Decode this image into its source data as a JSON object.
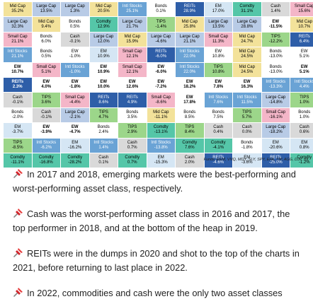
{
  "colors": {
    "Mid Cap": "#f3e29a",
    "Small Cap": "#f4b6c8",
    "Large Cap": "#b8cbe6",
    "Intl Stocks": "#6aa3d5",
    "Bonds": "#ffffff",
    "REITs": "#2e5ea8",
    "EM": "#d5e6f4",
    "Comdty": "#55c6a8",
    "Cash": "#d9d9d9",
    "TIPS": "#9cd68a",
    "EW": "#ffffff"
  },
  "grid": [
    [
      [
        "Mid Cap",
        "35.2%"
      ],
      [
        "Large Cap",
        "13.5%"
      ],
      [
        "Large Cap",
        "1.3%"
      ],
      [
        "Mid Cap",
        "20.5%"
      ],
      [
        "Intl Stocks",
        "25.1%"
      ],
      [
        "Bonds",
        "0.1%"
      ],
      [
        "REITs",
        "28.9%"
      ],
      [
        "EM",
        "17.0%"
      ],
      [
        "Comdty",
        "31.1%"
      ],
      [
        "Cash",
        "1.4%"
      ],
      [
        "Small Cap",
        "15.6%"
      ]
    ],
    [
      [
        "Large Cap",
        "32.3%"
      ],
      [
        "Mid Cap",
        "9.4%"
      ],
      [
        "Bonds",
        "0.5%"
      ],
      [
        "Comdty",
        "12.9%"
      ],
      [
        "Large Cap",
        "21.7%"
      ],
      [
        "TIPS",
        "-1.4%"
      ],
      [
        "Mid Cap",
        "25.8%"
      ],
      [
        "Large Cap",
        "13.5%"
      ],
      [
        "Large Cap",
        "28.8%"
      ],
      [
        "EW",
        "-11.5%"
      ],
      [
        "Mid Cap",
        "10.7%"
      ]
    ],
    [
      [
        "Small Cap",
        "21.1%"
      ],
      [
        "Bonds",
        "6.0%"
      ],
      [
        "Cash",
        "-0.1%"
      ],
      [
        "Large Cap",
        "12.0%"
      ],
      [
        "Mid Cap",
        "15.9%"
      ],
      [
        "Large Cap",
        "-4.6%"
      ],
      [
        "Large Cap",
        "21.1%"
      ],
      [
        "Small Cap",
        "11.3%"
      ],
      [
        "Mid Cap",
        "24.7%"
      ],
      [
        "TIPS",
        "-12.2%"
      ],
      [
        "REITs",
        "6.4%"
      ]
    ],
    [
      [
        "Intl Stocks",
        "21.1%"
      ],
      [
        "Bonds",
        "0.5%"
      ],
      [
        "EW",
        "-1.0%"
      ],
      [
        "EM",
        "10.9%"
      ],
      [
        "Small Cap",
        "12.1%"
      ],
      [
        "REITs",
        "-6.0%"
      ],
      [
        "Intl Stocks",
        "22.0%"
      ],
      [
        "EW",
        "10.8%"
      ],
      [
        "Mid Cap",
        "24.5%"
      ],
      [
        "Bonds",
        "-13.0%"
      ],
      [
        "EW",
        "5.1%"
      ]
    ],
    [
      [
        "EW",
        "10.7%"
      ],
      [
        "Small Cap",
        "5.1%"
      ],
      [
        "Intl Stocks",
        "-1.0%"
      ],
      [
        "EW",
        "10.9%"
      ],
      [
        "Small Cap",
        "12.1%"
      ],
      [
        "EW",
        "-6.0%"
      ],
      [
        "Intl Stocks",
        "22.0%"
      ],
      [
        "TIPS",
        "10.8%"
      ],
      [
        "Mid Cap",
        "24.5%"
      ],
      [
        "Bonds",
        "-13.0%"
      ],
      [
        "EW",
        "5.1%"
      ]
    ],
    [
      [
        "REITs",
        "2.3%"
      ],
      [
        "EW",
        "4.0%"
      ],
      [
        "EW",
        "-1.8%"
      ],
      [
        "EW",
        "10.0%"
      ],
      [
        "EW",
        "12.6%"
      ],
      [
        "EW",
        "-7.2%"
      ],
      [
        "EW",
        "18.2%"
      ],
      [
        "EW",
        "7.8%"
      ],
      [
        "EW",
        "16.3%"
      ],
      [
        "Intl Stocks",
        "-13.3%"
      ],
      [
        "Intl Stocks",
        "4.4%"
      ]
    ],
    [
      [
        "Cash",
        "-0.1%"
      ],
      [
        "TIPS",
        "3.6%"
      ],
      [
        "Small Cap",
        "-4.4%"
      ],
      [
        "REITs",
        "8.6%"
      ],
      [
        "REITs",
        "4.9%"
      ],
      [
        "Small Cap",
        "-8.6%"
      ],
      [
        "EW",
        "17.8%"
      ],
      [
        "Intl Stocks",
        "7.6%"
      ],
      [
        "Intl Stocks",
        "11.5%"
      ],
      [
        "Large Cap",
        "-14.8%"
      ],
      [
        "TIPS",
        "1.0%"
      ]
    ],
    [
      [
        "Bonds",
        "-2.0%"
      ],
      [
        "Cash",
        "-0.1%"
      ],
      [
        "Large Cap",
        "-2.1%"
      ],
      [
        "TIPS",
        "4.7%"
      ],
      [
        "Bonds",
        "3.5%"
      ],
      [
        "Mid Cap",
        "-11.1%"
      ],
      [
        "Bonds",
        "8.5%"
      ],
      [
        "Bonds",
        "7.5%"
      ],
      [
        "TIPS",
        "5.7%"
      ],
      [
        "Small Cap",
        "-16.1%"
      ],
      [
        "Bonds",
        "1.0%"
      ]
    ],
    [
      [
        "EM",
        "-3.7%"
      ],
      [
        "EW",
        "-3.9%"
      ],
      [
        "EW",
        "-4.7%"
      ],
      [
        "Bonds",
        "2.4%"
      ],
      [
        "TIPS",
        "2.9%"
      ],
      [
        "Comdty",
        "-13.1%"
      ],
      [
        "TIPS",
        "8.4%"
      ],
      [
        "Cash",
        "0.4%"
      ],
      [
        "Cash",
        "0.0%"
      ],
      [
        "Large Cap",
        "-18.2%"
      ],
      [
        "Cash",
        "0.6%"
      ]
    ],
    [
      [
        "TIPS",
        "-8.5%"
      ],
      [
        "Intl Stocks",
        "-6.2%"
      ],
      [
        "EM",
        "-16.2%"
      ],
      [
        "Intl Stocks",
        "1.4%"
      ],
      [
        "Cash",
        "0.7%"
      ],
      [
        "Intl Stocks",
        "-13.8%"
      ],
      [
        "Comdty",
        "7.6%"
      ],
      [
        "Comdty",
        "-4.1%"
      ],
      [
        "Bonds",
        "-1.8%"
      ],
      [
        "EM",
        "-20.6%"
      ],
      [
        "EM",
        "0.8%"
      ]
    ],
    [
      [
        "Comdty",
        "-11.1%"
      ],
      [
        "Comdty",
        "-16.8%"
      ],
      [
        "Comdty",
        "-28.2%"
      ],
      [
        "Cash",
        "0.1%"
      ],
      [
        "Comdty",
        "0.7%"
      ],
      [
        "EM",
        "-15.3%"
      ],
      [
        "Cash",
        "2.0%"
      ],
      [
        "REITs",
        "-4.6%"
      ],
      [
        "EM",
        "-3.6%"
      ],
      [
        "REITs",
        "-25.0%"
      ],
      [
        "Comdty",
        "-1.2%"
      ]
    ]
  ],
  "bold_cells": [
    "4,0",
    "4,3",
    "4,5",
    "4,10",
    "5,0",
    "5,1",
    "5,2",
    "5,3",
    "5,4",
    "5,5",
    "5,6",
    "5,7",
    "5,8",
    "8,1",
    "8,2",
    "1,9",
    "6,6"
  ],
  "footnote": "Funds: EEM, VNQ, MDY, SLY, SPY, EFA, TIP, AGG, DJP, BIL",
  "notes": [
    {
      "icon": "pushpin-icon",
      "text": "In 2017 and 2018, emerging markets were the best-performing and worst-performing asset class, respectively."
    },
    {
      "icon": "pushpin-icon",
      "text": "Cash was the worst-performing asset class in 2016 and 2017, the top performer in 2018, and at the bottom of the heap in 2019."
    },
    {
      "icon": "pushpin-icon",
      "text": "REITs were in the dumps in 2020 and shot to the top of the charts in 2021, before returning to last place in 2022."
    },
    {
      "icon": "pushpin-icon",
      "text": "In 2022, commodities and cash were the only two asset classes"
    }
  ]
}
